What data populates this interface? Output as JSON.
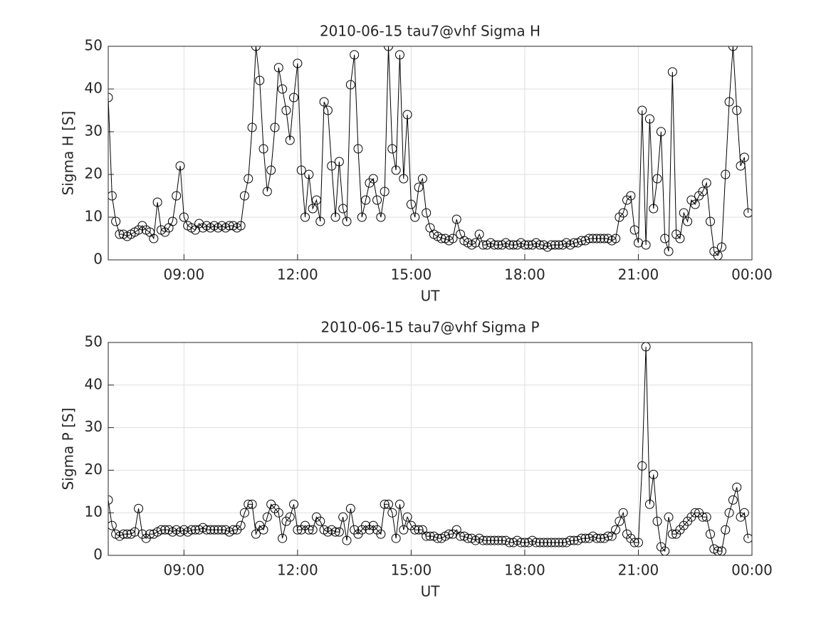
{
  "chart_data": [
    {
      "type": "line",
      "title": "2010-06-15  tau7@vhf Sigma H",
      "xlabel": "UT",
      "ylabel": "Sigma H [S]",
      "x": [
        7,
        7.1,
        7.2,
        7.3,
        7.4,
        7.5,
        7.6,
        7.7,
        7.8,
        7.9,
        8,
        8.1,
        8.2,
        8.3,
        8.4,
        8.5,
        8.6,
        8.7,
        8.8,
        8.9,
        9,
        9.1,
        9.2,
        9.3,
        9.4,
        9.5,
        9.6,
        9.7,
        9.8,
        9.9,
        10,
        10.1,
        10.2,
        10.3,
        10.4,
        10.5,
        10.6,
        10.7,
        10.8,
        10.9,
        11,
        11.1,
        11.2,
        11.3,
        11.4,
        11.5,
        11.6,
        11.7,
        11.8,
        11.9,
        12,
        12.1,
        12.2,
        12.3,
        12.4,
        12.5,
        12.6,
        12.7,
        12.8,
        12.9,
        13,
        13.1,
        13.2,
        13.3,
        13.4,
        13.5,
        13.6,
        13.7,
        13.8,
        13.9,
        14,
        14.1,
        14.2,
        14.3,
        14.4,
        14.5,
        14.6,
        14.7,
        14.8,
        14.9,
        15,
        15.1,
        15.2,
        15.3,
        15.4,
        15.5,
        15.6,
        15.7,
        15.8,
        15.9,
        16,
        16.1,
        16.2,
        16.3,
        16.4,
        16.5,
        16.6,
        16.7,
        16.8,
        16.9,
        17,
        17.1,
        17.2,
        17.3,
        17.4,
        17.5,
        17.6,
        17.7,
        17.8,
        17.9,
        18,
        18.1,
        18.2,
        18.3,
        18.4,
        18.5,
        18.6,
        18.7,
        18.8,
        18.9,
        19,
        19.1,
        19.2,
        19.3,
        19.4,
        19.5,
        19.6,
        19.7,
        19.8,
        19.9,
        20,
        20.1,
        20.2,
        20.3,
        20.4,
        20.5,
        20.6,
        20.7,
        20.8,
        20.9,
        21,
        21.1,
        21.2,
        21.3,
        21.4,
        21.5,
        21.6,
        21.7,
        21.8,
        21.9,
        22,
        22.1,
        22.2,
        22.3,
        22.4,
        22.5,
        22.6,
        22.7,
        22.8,
        22.9,
        23,
        23.1,
        23.2,
        23.3,
        23.4,
        23.5,
        23.6,
        23.7,
        23.8,
        23.9
      ],
      "values": [
        38,
        15,
        9,
        6,
        6,
        5.5,
        6,
        6.5,
        7,
        8,
        7,
        6.5,
        5,
        13.5,
        7,
        6.5,
        7.5,
        9,
        15,
        22,
        10,
        8,
        7.5,
        7,
        8.5,
        7.5,
        8,
        7.5,
        8,
        7.5,
        8,
        7.5,
        8,
        8,
        7.5,
        8,
        15,
        19,
        31,
        50,
        42,
        26,
        16,
        21,
        31,
        45,
        40,
        35,
        28,
        38,
        46,
        21,
        10,
        20,
        12,
        14,
        9,
        37,
        35,
        22,
        10,
        23,
        12,
        9,
        41,
        48,
        26,
        10,
        14,
        18,
        19,
        14,
        10,
        16,
        50,
        26,
        21,
        48,
        19,
        34,
        13,
        10,
        17,
        19,
        11,
        7.5,
        6,
        5.5,
        5,
        5,
        4.5,
        5,
        9.5,
        6,
        4.5,
        4,
        3.5,
        4,
        6,
        3.5,
        3.5,
        4,
        3.5,
        3.5,
        3.5,
        4,
        3.5,
        3.5,
        3.5,
        4,
        3.5,
        3.5,
        3.5,
        4,
        3.5,
        3.5,
        3,
        3.5,
        3.5,
        3.5,
        3.5,
        4,
        3.5,
        4,
        4,
        4.5,
        4.5,
        5,
        5,
        5,
        5,
        5,
        5,
        4.5,
        5,
        10,
        11,
        14,
        15,
        7,
        4,
        35,
        3.5,
        33,
        12,
        19,
        30,
        5,
        2,
        44,
        6,
        5,
        11,
        9,
        14,
        13,
        15,
        16,
        18,
        9,
        2,
        1,
        3,
        20,
        37,
        50,
        35,
        22,
        24,
        11
      ],
      "color": "#000000",
      "marker": "o",
      "grid": true,
      "xlim": [
        7,
        24
      ],
      "xticks": [
        {
          "value": 9,
          "label": "09:00"
        },
        {
          "value": 12,
          "label": "12:00"
        },
        {
          "value": 15,
          "label": "15:00"
        },
        {
          "value": 18,
          "label": "18:00"
        },
        {
          "value": 21,
          "label": "21:00"
        },
        {
          "value": 24,
          "label": "00:00"
        }
      ],
      "ylim": [
        0,
        50
      ],
      "yticks": [
        0,
        10,
        20,
        30,
        40,
        50
      ]
    },
    {
      "type": "line",
      "title": "2010-06-15  tau7@vhf Sigma P",
      "xlabel": "UT",
      "ylabel": "Sigma P [S]",
      "x": [
        7,
        7.1,
        7.2,
        7.3,
        7.4,
        7.5,
        7.6,
        7.7,
        7.8,
        7.9,
        8,
        8.1,
        8.2,
        8.3,
        8.4,
        8.5,
        8.6,
        8.7,
        8.8,
        8.9,
        9,
        9.1,
        9.2,
        9.3,
        9.4,
        9.5,
        9.6,
        9.7,
        9.8,
        9.9,
        10,
        10.1,
        10.2,
        10.3,
        10.4,
        10.5,
        10.6,
        10.7,
        10.8,
        10.9,
        11,
        11.1,
        11.2,
        11.3,
        11.4,
        11.5,
        11.6,
        11.7,
        11.8,
        11.9,
        12,
        12.1,
        12.2,
        12.3,
        12.4,
        12.5,
        12.6,
        12.7,
        12.8,
        12.9,
        13,
        13.1,
        13.2,
        13.3,
        13.4,
        13.5,
        13.6,
        13.7,
        13.8,
        13.9,
        14,
        14.1,
        14.2,
        14.3,
        14.4,
        14.5,
        14.6,
        14.7,
        14.8,
        14.9,
        15,
        15.1,
        15.2,
        15.3,
        15.4,
        15.5,
        15.6,
        15.7,
        15.8,
        15.9,
        16,
        16.1,
        16.2,
        16.3,
        16.4,
        16.5,
        16.6,
        16.7,
        16.8,
        16.9,
        17,
        17.1,
        17.2,
        17.3,
        17.4,
        17.5,
        17.6,
        17.7,
        17.8,
        17.9,
        18,
        18.1,
        18.2,
        18.3,
        18.4,
        18.5,
        18.6,
        18.7,
        18.8,
        18.9,
        19,
        19.1,
        19.2,
        19.3,
        19.4,
        19.5,
        19.6,
        19.7,
        19.8,
        19.9,
        20,
        20.1,
        20.2,
        20.3,
        20.4,
        20.5,
        20.6,
        20.7,
        20.8,
        20.9,
        21,
        21.1,
        21.2,
        21.3,
        21.4,
        21.5,
        21.6,
        21.7,
        21.8,
        21.9,
        22,
        22.1,
        22.2,
        22.3,
        22.4,
        22.5,
        22.6,
        22.7,
        22.8,
        22.9,
        23,
        23.1,
        23.2,
        23.3,
        23.4,
        23.5,
        23.6,
        23.7,
        23.8,
        23.9
      ],
      "values": [
        13,
        7,
        5,
        4.5,
        5,
        5,
        5,
        5.5,
        11,
        5,
        4,
        5,
        5,
        5.5,
        6,
        6,
        6,
        5.5,
        6,
        5.5,
        6,
        5.5,
        6,
        6,
        6,
        6.5,
        6,
        6,
        6,
        6,
        6,
        6,
        5.5,
        6,
        6,
        7,
        10,
        12,
        12,
        5,
        7,
        6,
        9,
        12,
        11,
        10,
        4,
        8,
        9,
        12,
        6,
        6,
        7,
        6,
        6,
        9,
        8,
        6,
        5.5,
        6,
        5.5,
        5.5,
        9,
        3.5,
        11,
        6,
        5,
        6,
        7,
        6,
        7,
        6,
        5,
        12,
        12,
        10,
        4,
        12,
        6,
        9,
        7,
        6,
        6,
        6,
        4.5,
        4.5,
        4.5,
        4,
        4,
        4.5,
        5,
        5,
        6,
        4.5,
        4.5,
        4,
        4,
        3.5,
        4,
        3.5,
        3.5,
        3.5,
        3.5,
        3.5,
        3.5,
        3.5,
        3,
        3,
        3.5,
        3,
        3,
        3,
        3.5,
        3,
        3,
        3,
        3,
        3,
        3,
        3,
        3,
        3,
        3.5,
        3.5,
        3.5,
        4,
        4,
        4,
        4.5,
        4,
        4,
        4,
        4.5,
        4.5,
        6,
        8,
        10,
        5,
        4,
        3,
        3,
        21,
        49,
        12,
        19,
        8,
        2,
        1,
        9,
        5,
        5,
        6,
        7,
        8,
        9,
        10,
        10,
        9,
        9,
        5,
        1.5,
        1,
        1,
        6,
        10,
        13,
        16,
        9,
        10,
        4
      ],
      "color": "#000000",
      "marker": "o",
      "grid": true,
      "xlim": [
        7,
        24
      ],
      "xticks": [
        {
          "value": 9,
          "label": "09:00"
        },
        {
          "value": 12,
          "label": "12:00"
        },
        {
          "value": 15,
          "label": "15:00"
        },
        {
          "value": 18,
          "label": "18:00"
        },
        {
          "value": 21,
          "label": "21:00"
        },
        {
          "value": 24,
          "label": "00:00"
        }
      ],
      "ylim": [
        0,
        50
      ],
      "yticks": [
        0,
        10,
        20,
        30,
        40,
        50
      ]
    }
  ]
}
